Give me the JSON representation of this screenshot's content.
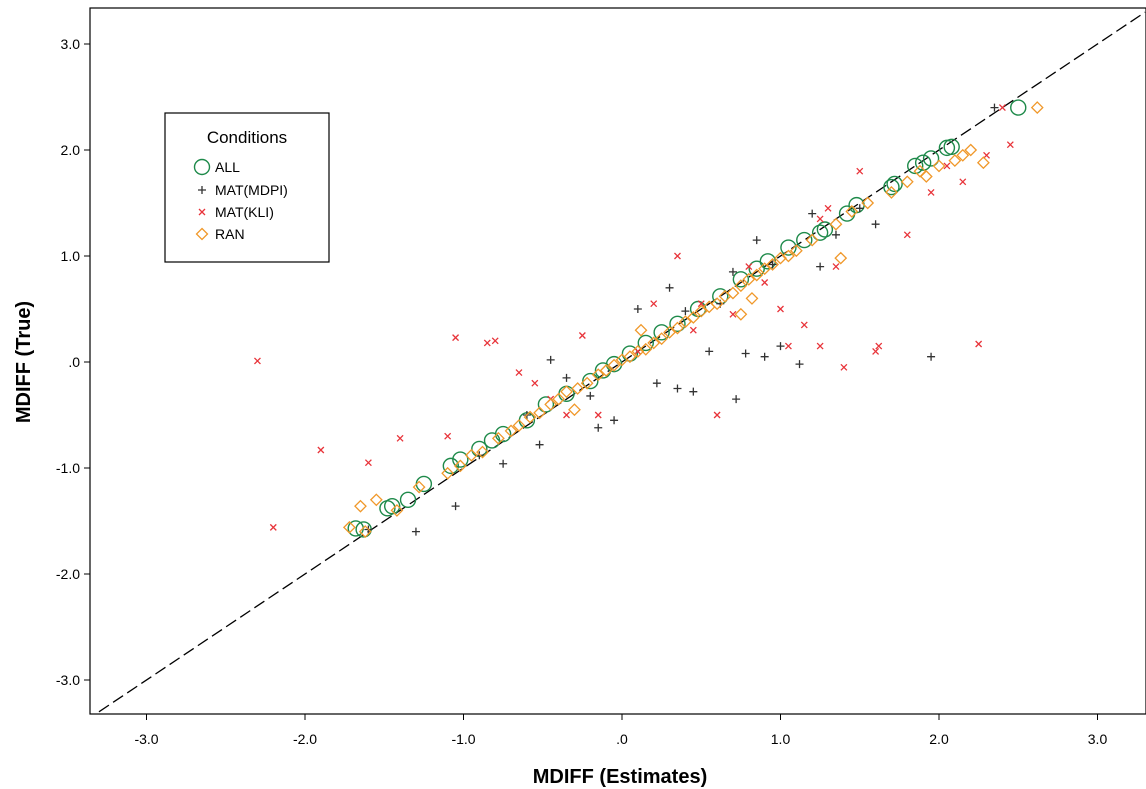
{
  "chart_data": {
    "type": "scatter",
    "xlabel": "MDIFF (Estimates)",
    "ylabel": "MDIFF (True)",
    "xlim": [
      -3.3,
      3.3
    ],
    "ylim": [
      -3.3,
      3.3
    ],
    "x_ticks": [
      -3,
      -2,
      -1,
      0,
      1,
      2,
      3
    ],
    "x_tick_labels": [
      "-3.0",
      "-2.0",
      "-1.0",
      ".0",
      "1.0",
      "2.0",
      "3.0"
    ],
    "y_ticks": [
      -3,
      -2,
      -1,
      0,
      1,
      2,
      3
    ],
    "y_tick_labels": [
      "-3.0",
      "-2.0",
      "-1.0",
      ".0",
      "1.0",
      "2.0",
      "3.0"
    ],
    "grid": false,
    "reference_line": "identity (y = x), dashed",
    "legend": {
      "title": "Conditions",
      "placement": "top-left"
    },
    "series": [
      {
        "name": "ALL",
        "marker": "circle",
        "color": "#1e8a4a",
        "points": [
          [
            -1.68,
            -1.57
          ],
          [
            -1.63,
            -1.58
          ],
          [
            -1.48,
            -1.38
          ],
          [
            -1.45,
            -1.36
          ],
          [
            -1.35,
            -1.3
          ],
          [
            -1.25,
            -1.15
          ],
          [
            -1.08,
            -0.98
          ],
          [
            -1.02,
            -0.92
          ],
          [
            -0.9,
            -0.82
          ],
          [
            -0.82,
            -0.74
          ],
          [
            -0.75,
            -0.68
          ],
          [
            -0.6,
            -0.55
          ],
          [
            -0.48,
            -0.4
          ],
          [
            -0.35,
            -0.3
          ],
          [
            -0.2,
            -0.18
          ],
          [
            -0.12,
            -0.08
          ],
          [
            -0.05,
            -0.02
          ],
          [
            0.05,
            0.08
          ],
          [
            0.15,
            0.18
          ],
          [
            0.25,
            0.28
          ],
          [
            0.35,
            0.36
          ],
          [
            0.48,
            0.5
          ],
          [
            0.62,
            0.62
          ],
          [
            0.75,
            0.78
          ],
          [
            0.85,
            0.88
          ],
          [
            0.92,
            0.95
          ],
          [
            1.05,
            1.08
          ],
          [
            1.15,
            1.15
          ],
          [
            1.25,
            1.22
          ],
          [
            1.28,
            1.25
          ],
          [
            1.42,
            1.4
          ],
          [
            1.48,
            1.48
          ],
          [
            1.7,
            1.65
          ],
          [
            1.72,
            1.68
          ],
          [
            1.85,
            1.85
          ],
          [
            1.9,
            1.88
          ],
          [
            1.95,
            1.92
          ],
          [
            2.05,
            2.02
          ],
          [
            2.08,
            2.03
          ],
          [
            2.5,
            2.4
          ]
        ]
      },
      {
        "name": "MAT(MDPI)",
        "marker": "plus",
        "color": "#333333",
        "points": [
          [
            -1.6,
            -1.58
          ],
          [
            -1.3,
            -1.6
          ],
          [
            -1.05,
            -1.36
          ],
          [
            -0.75,
            -0.96
          ],
          [
            -0.52,
            -0.78
          ],
          [
            -0.45,
            0.02
          ],
          [
            -0.35,
            -0.15
          ],
          [
            -0.15,
            -0.62
          ],
          [
            -0.05,
            -0.55
          ],
          [
            0.1,
            0.5
          ],
          [
            0.22,
            -0.2
          ],
          [
            0.3,
            0.7
          ],
          [
            0.35,
            -0.25
          ],
          [
            0.45,
            -0.28
          ],
          [
            0.55,
            0.1
          ],
          [
            0.62,
            0.55
          ],
          [
            0.7,
            0.85
          ],
          [
            0.72,
            -0.35
          ],
          [
            0.78,
            0.08
          ],
          [
            0.85,
            1.15
          ],
          [
            0.9,
            0.05
          ],
          [
            0.95,
            0.92
          ],
          [
            1.0,
            0.15
          ],
          [
            1.12,
            -0.02
          ],
          [
            1.2,
            1.4
          ],
          [
            1.25,
            0.9
          ],
          [
            1.35,
            1.2
          ],
          [
            1.6,
            1.3
          ],
          [
            1.95,
            0.05
          ],
          [
            2.35,
            2.4
          ],
          [
            -0.9,
            -0.88
          ],
          [
            -0.2,
            -0.32
          ],
          [
            0.4,
            0.48
          ],
          [
            -0.6,
            -0.5
          ],
          [
            1.5,
            1.45
          ]
        ]
      },
      {
        "name": "MAT(KLI)",
        "marker": "cross",
        "color": "#e8343a",
        "points": [
          [
            -2.3,
            0.01
          ],
          [
            -2.2,
            -1.56
          ],
          [
            -1.9,
            -0.83
          ],
          [
            -1.6,
            -0.95
          ],
          [
            -1.4,
            -0.72
          ],
          [
            -1.1,
            -0.7
          ],
          [
            -1.05,
            0.23
          ],
          [
            -0.8,
            0.2
          ],
          [
            -0.85,
            0.18
          ],
          [
            -0.65,
            -0.1
          ],
          [
            -0.55,
            -0.2
          ],
          [
            -0.35,
            -0.5
          ],
          [
            -0.25,
            0.25
          ],
          [
            -0.15,
            -0.5
          ],
          [
            0.1,
            0.1
          ],
          [
            0.2,
            0.55
          ],
          [
            0.35,
            1.0
          ],
          [
            0.45,
            0.3
          ],
          [
            0.6,
            -0.5
          ],
          [
            0.7,
            0.45
          ],
          [
            0.8,
            0.9
          ],
          [
            1.0,
            0.5
          ],
          [
            1.05,
            0.15
          ],
          [
            1.15,
            0.35
          ],
          [
            1.25,
            1.35
          ],
          [
            1.3,
            1.45
          ],
          [
            1.35,
            0.9
          ],
          [
            1.5,
            1.8
          ],
          [
            1.6,
            0.1
          ],
          [
            1.62,
            0.15
          ],
          [
            1.8,
            1.2
          ],
          [
            1.95,
            1.6
          ],
          [
            2.05,
            1.85
          ],
          [
            2.15,
            1.7
          ],
          [
            2.25,
            0.17
          ],
          [
            2.3,
            1.95
          ],
          [
            2.45,
            2.05
          ],
          [
            2.4,
            2.4
          ],
          [
            1.4,
            -0.05
          ],
          [
            1.25,
            0.15
          ],
          [
            0.9,
            0.75
          ],
          [
            -0.45,
            -0.35
          ],
          [
            0.5,
            0.55
          ]
        ]
      },
      {
        "name": "RAN",
        "marker": "diamond",
        "color": "#f0982a",
        "points": [
          [
            -1.72,
            -1.56
          ],
          [
            -1.65,
            -1.36
          ],
          [
            -1.62,
            -1.6
          ],
          [
            -1.55,
            -1.3
          ],
          [
            -1.42,
            -1.4
          ],
          [
            -1.28,
            -1.18
          ],
          [
            -1.1,
            -1.05
          ],
          [
            -1.02,
            -0.98
          ],
          [
            -0.95,
            -0.88
          ],
          [
            -0.88,
            -0.85
          ],
          [
            -0.78,
            -0.72
          ],
          [
            -0.7,
            -0.65
          ],
          [
            -0.65,
            -0.6
          ],
          [
            -0.58,
            -0.52
          ],
          [
            -0.52,
            -0.48
          ],
          [
            -0.45,
            -0.4
          ],
          [
            -0.4,
            -0.35
          ],
          [
            -0.35,
            -0.28
          ],
          [
            -0.28,
            -0.25
          ],
          [
            -0.22,
            -0.2
          ],
          [
            -0.15,
            -0.12
          ],
          [
            -0.1,
            -0.08
          ],
          [
            -0.05,
            -0.03
          ],
          [
            0.0,
            0.02
          ],
          [
            0.05,
            0.05
          ],
          [
            0.1,
            0.1
          ],
          [
            0.15,
            0.12
          ],
          [
            0.2,
            0.18
          ],
          [
            0.25,
            0.22
          ],
          [
            0.3,
            0.28
          ],
          [
            0.35,
            0.32
          ],
          [
            0.4,
            0.38
          ],
          [
            0.45,
            0.42
          ],
          [
            0.5,
            0.48
          ],
          [
            0.55,
            0.52
          ],
          [
            0.6,
            0.55
          ],
          [
            0.65,
            0.62
          ],
          [
            0.7,
            0.65
          ],
          [
            0.75,
            0.72
          ],
          [
            0.8,
            0.78
          ],
          [
            0.85,
            0.82
          ],
          [
            0.9,
            0.88
          ],
          [
            0.95,
            0.92
          ],
          [
            1.0,
            0.98
          ],
          [
            1.05,
            1.0
          ],
          [
            1.1,
            1.05
          ],
          [
            1.2,
            1.15
          ],
          [
            1.35,
            1.3
          ],
          [
            1.45,
            1.42
          ],
          [
            1.55,
            1.5
          ],
          [
            1.7,
            1.6
          ],
          [
            1.8,
            1.7
          ],
          [
            1.88,
            1.8
          ],
          [
            1.92,
            1.75
          ],
          [
            2.0,
            1.85
          ],
          [
            2.1,
            1.9
          ],
          [
            2.15,
            1.95
          ],
          [
            2.2,
            2.0
          ],
          [
            2.28,
            1.88
          ],
          [
            2.62,
            2.4
          ],
          [
            0.75,
            0.45
          ],
          [
            1.38,
            0.98
          ],
          [
            0.12,
            0.3
          ],
          [
            -0.3,
            -0.45
          ],
          [
            0.82,
            0.6
          ]
        ]
      }
    ]
  }
}
